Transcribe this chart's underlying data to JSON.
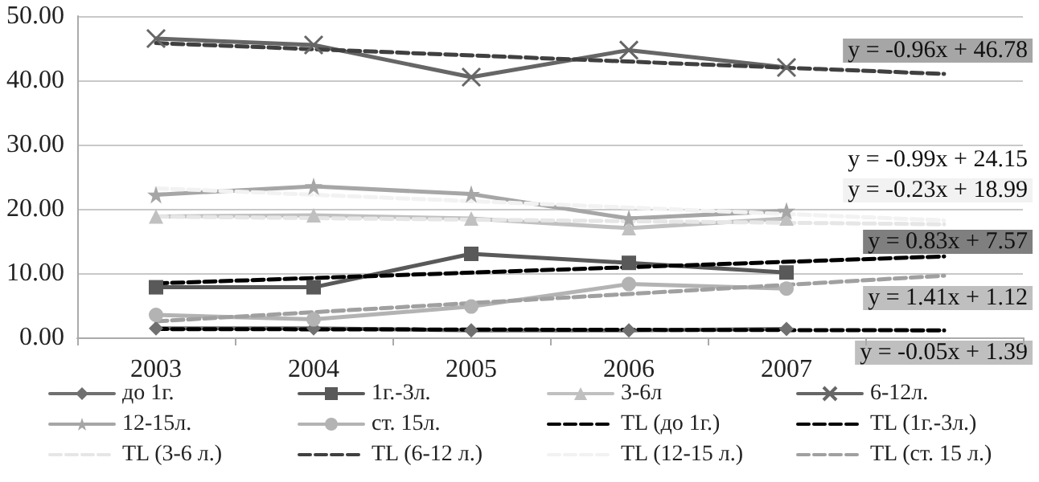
{
  "chart_data": {
    "type": "line",
    "categories": [
      "2003",
      "2004",
      "2005",
      "2006",
      "2007",
      null
    ],
    "ylim": [
      0,
      50
    ],
    "yticks": [
      {
        "value": 0,
        "label": "0.00"
      },
      {
        "value": 10,
        "label": "10.00"
      },
      {
        "value": 20,
        "label": "20.00"
      },
      {
        "value": 30,
        "label": "30.00"
      },
      {
        "value": 40,
        "label": "40.00"
      },
      {
        "value": 50,
        "label": "50.00"
      }
    ],
    "grid": "y",
    "legend": "bottom",
    "series": [
      {
        "name": "до 1г.",
        "color": "#707070",
        "marker": "diamond",
        "values": [
          1.4,
          1.4,
          1.1,
          1.1,
          1.3,
          null
        ]
      },
      {
        "name": "1г.-3л.",
        "color": "#595959",
        "marker": "square",
        "values": [
          7.8,
          7.8,
          13,
          11.6,
          10.1,
          null
        ]
      },
      {
        "name": "3-6л",
        "color": "#c0c0c0",
        "marker": "triangle",
        "values": [
          18.8,
          19,
          18.5,
          17,
          18.5,
          null
        ]
      },
      {
        "name": "6-12л.",
        "color": "#666666",
        "marker": "cross",
        "values": [
          46.5,
          45.5,
          40.5,
          44.7,
          42,
          null
        ]
      },
      {
        "name": "12-15л.",
        "color": "#a6a6a6",
        "marker": "star",
        "values": [
          22.2,
          23.5,
          22.3,
          18.5,
          19.7,
          null
        ]
      },
      {
        "name": "ст. 15л.",
        "color": "#b3b3b3",
        "marker": "circle",
        "values": [
          3.5,
          2.8,
          4.8,
          8.3,
          7.6,
          null
        ]
      },
      {
        "name": "TL (до 1г.)",
        "color": "#000000",
        "marker": "none",
        "line_style": "dashed",
        "values": [
          1.3,
          null,
          null,
          null,
          null,
          1.1
        ]
      },
      {
        "name": "TL (1г.-3л.)",
        "color": "#000000",
        "marker": "none",
        "line_style": "dashed",
        "values": [
          8.4,
          null,
          null,
          null,
          null,
          12.6
        ]
      },
      {
        "name": "TL (3-6 л.)",
        "color": "#e6e6e6",
        "marker": "none",
        "line_style": "dashed",
        "values": [
          18.8,
          null,
          null,
          null,
          null,
          17.6
        ]
      },
      {
        "name": "TL (6-12 л.)",
        "color": "#404040",
        "marker": "none",
        "line_style": "dashed",
        "values": [
          45.8,
          null,
          null,
          null,
          null,
          41
        ]
      },
      {
        "name": "TL (12-15 л.)",
        "color": "#f2f2f2",
        "marker": "none",
        "line_style": "dashed",
        "values": [
          23.2,
          null,
          null,
          null,
          null,
          18.2
        ]
      },
      {
        "name": "TL (ст. 15 л.)",
        "color": "#a0a0a0",
        "marker": "none",
        "line_style": "dashed",
        "values": [
          2.5,
          null,
          null,
          null,
          null,
          9.6
        ]
      }
    ],
    "annotations": [
      "y = -0.96x + 46.78",
      "y = -0.99x + 24.15",
      "y = -0.23x + 18.99",
      "y = 0.83x + 7.57",
      "y = 1.41x + 1.12",
      "y = -0.05x + 1.39"
    ]
  }
}
